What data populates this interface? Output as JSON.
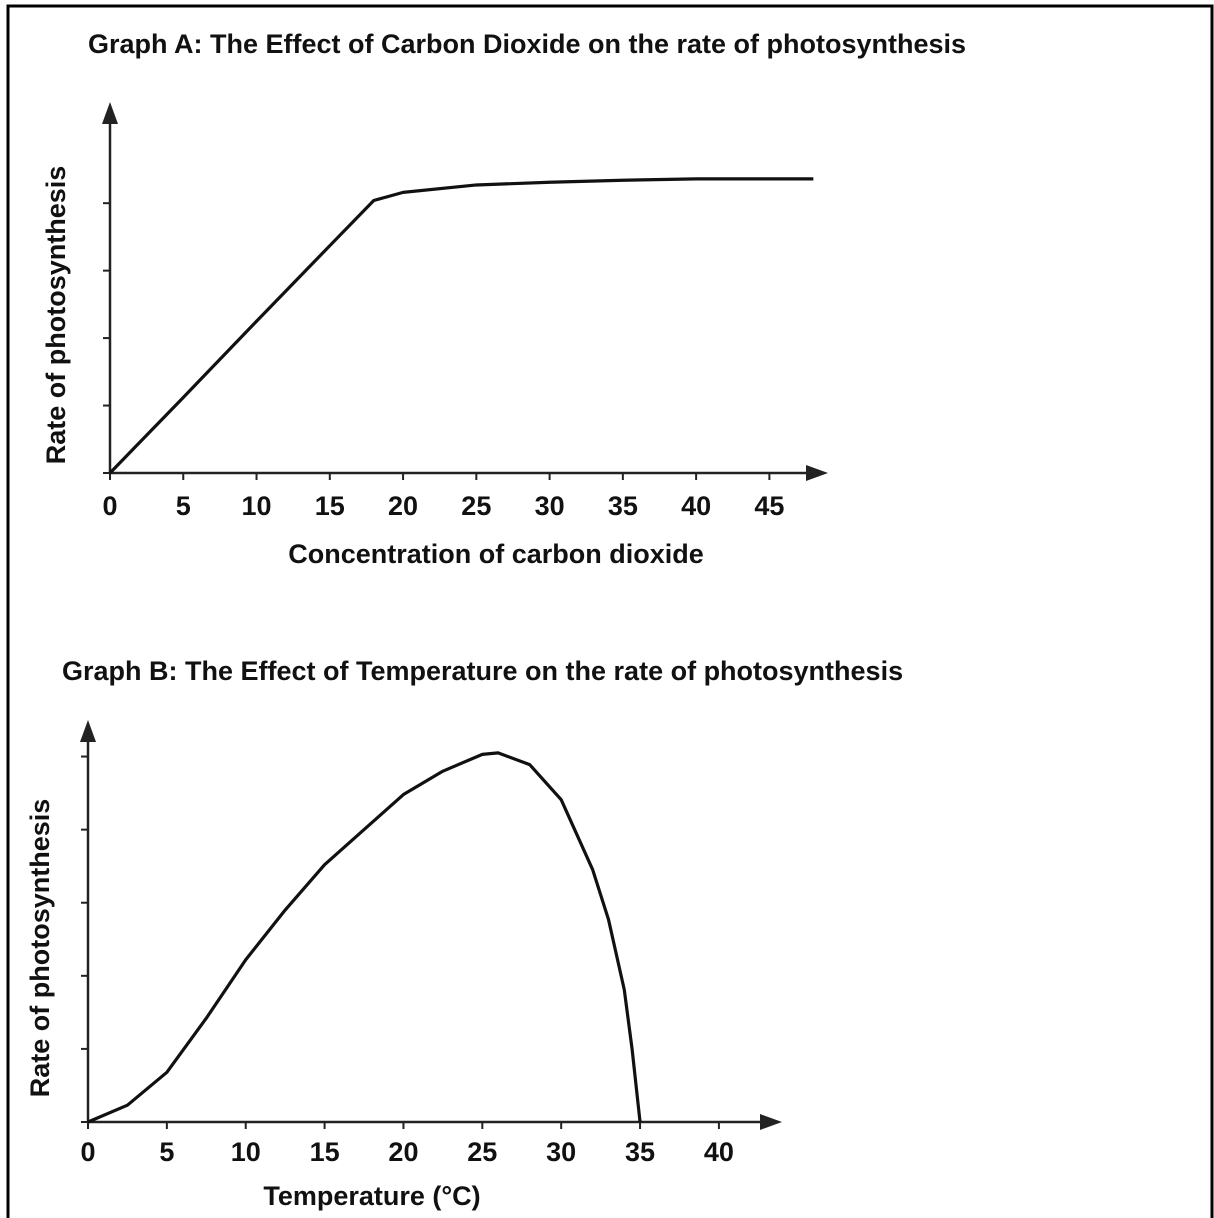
{
  "chart_data": [
    {
      "type": "line",
      "title": "Graph A: The Effect of Carbon Dioxide on the rate of photosynthesis",
      "xlabel": "Concentration of carbon dioxide",
      "ylabel": "Rate of photosynthesis",
      "x": [
        0,
        5,
        10,
        15,
        18,
        20,
        25,
        30,
        35,
        40,
        45,
        48
      ],
      "values": [
        0,
        1.12,
        2.25,
        3.37,
        4.04,
        4.16,
        4.27,
        4.31,
        4.34,
        4.36,
        4.36,
        4.36
      ],
      "color": "#111111",
      "xlim": [
        0,
        49
      ],
      "xticks": [
        0,
        5,
        10,
        15,
        20,
        25,
        30,
        35,
        40,
        45
      ],
      "ylim": [
        0,
        5.5
      ],
      "yticks": [
        0,
        1,
        2,
        3,
        4
      ]
    },
    {
      "type": "line",
      "title": "Graph B: The Effect of Temperature on the rate of photosynthesis",
      "xlabel": "Temperature (°C)",
      "ylabel": "Rate of photosynthesis",
      "x": [
        0,
        2.5,
        5,
        7.5,
        10,
        12.5,
        15,
        20,
        22.5,
        25,
        26,
        28,
        30,
        32,
        33,
        34,
        34.5,
        35
      ],
      "values": [
        0,
        0.23,
        0.68,
        1.42,
        2.22,
        2.9,
        3.52,
        4.48,
        4.8,
        5.03,
        5.05,
        4.89,
        4.41,
        3.45,
        2.77,
        1.81,
        0.99,
        0
      ],
      "color": "#111111",
      "xlim": [
        0,
        44
      ],
      "xticks": [
        0,
        5,
        10,
        15,
        20,
        25,
        30,
        35,
        40
      ],
      "ylim": [
        0,
        5.5
      ],
      "yticks": [
        0,
        1,
        2,
        3,
        4,
        5
      ]
    }
  ]
}
